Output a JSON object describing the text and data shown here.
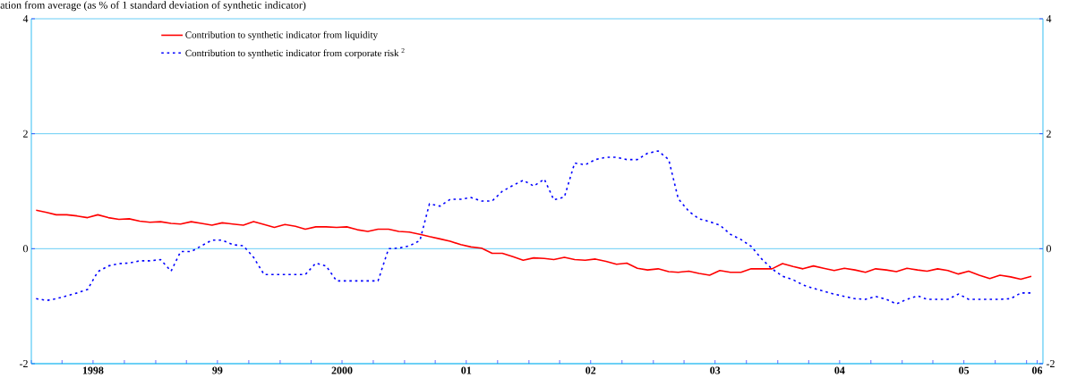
{
  "chart_data": {
    "type": "line",
    "title": "ation from average (as % of 1 standard deviation of synthetic indicator)",
    "x": [
      "1998-01-15",
      "1998-02-15",
      "1998-03-15",
      "1998-04-15",
      "1998-05-15",
      "1998-06-15",
      "1998-07-15",
      "1998-08-15",
      "1998-09-15",
      "1998-10-15",
      "1998-11-15",
      "1998-12-15",
      "1999-01-15",
      "1999-02-15",
      "1999-03-15",
      "1999-04-15",
      "1999-05-15",
      "1999-06-15",
      "1999-07-15",
      "1999-08-15",
      "1999-09-15",
      "1999-10-15",
      "1999-11-15",
      "1999-12-15",
      "2000-01-15",
      "2000-02-15",
      "2000-03-15",
      "2000-04-15",
      "2000-05-15",
      "2000-06-15",
      "2000-07-15",
      "2000-08-15",
      "2000-09-15",
      "2000-10-15",
      "2000-11-15",
      "2000-12-15",
      "2001-01-15",
      "2001-02-15",
      "2001-03-15",
      "2001-04-15",
      "2001-05-15",
      "2001-06-15",
      "2001-07-15",
      "2001-08-15",
      "2001-09-15",
      "2001-10-15",
      "2001-11-15",
      "2001-12-15",
      "2002-01-15",
      "2002-02-15",
      "2002-03-15",
      "2002-04-15",
      "2002-05-15",
      "2002-06-15",
      "2002-07-15",
      "2002-08-15",
      "2002-09-15",
      "2002-10-15",
      "2002-11-15",
      "2002-12-15",
      "2003-01-15",
      "2003-02-15",
      "2003-03-15",
      "2003-04-15",
      "2003-05-15",
      "2003-06-15",
      "2003-07-15",
      "2003-08-15",
      "2003-09-15",
      "2003-10-15",
      "2003-11-15",
      "2003-12-15",
      "2004-01-15",
      "2004-02-15",
      "2004-03-15",
      "2004-04-15",
      "2004-05-15",
      "2004-06-15",
      "2004-07-15",
      "2004-08-15",
      "2004-09-15",
      "2004-10-15",
      "2004-11-15",
      "2004-12-15",
      "2005-01-15",
      "2005-02-15",
      "2005-03-15",
      "2005-04-15",
      "2005-05-15",
      "2005-06-15",
      "2005-07-15",
      "2005-08-15",
      "2005-09-15",
      "2005-10-15",
      "2005-11-15",
      "2005-12-15",
      "2006-01-15"
    ],
    "series": [
      {
        "name": "Contribution to synthetic indicator from liquidity",
        "color": "#ff0000",
        "line_style": "solid",
        "values": [
          0.67,
          0.63,
          0.59,
          0.59,
          0.57,
          0.54,
          0.59,
          0.54,
          0.51,
          0.52,
          0.48,
          0.46,
          0.47,
          0.44,
          0.43,
          0.47,
          0.44,
          0.41,
          0.45,
          0.43,
          0.41,
          0.47,
          0.42,
          0.37,
          0.42,
          0.39,
          0.34,
          0.38,
          0.38,
          0.37,
          0.38,
          0.33,
          0.3,
          0.34,
          0.34,
          0.3,
          0.29,
          0.25,
          0.21,
          0.17,
          0.13,
          0.07,
          0.03,
          0.01,
          -0.08,
          -0.08,
          -0.14,
          -0.2,
          -0.16,
          -0.17,
          -0.19,
          -0.15,
          -0.19,
          -0.2,
          -0.18,
          -0.22,
          -0.27,
          -0.25,
          -0.34,
          -0.37,
          -0.35,
          -0.4,
          -0.41,
          -0.39,
          -0.43,
          -0.46,
          -0.38,
          -0.41,
          -0.41,
          -0.35,
          -0.35,
          -0.35,
          -0.26,
          -0.31,
          -0.35,
          -0.3,
          -0.34,
          -0.38,
          -0.34,
          -0.37,
          -0.41,
          -0.35,
          -0.37,
          -0.4,
          -0.34,
          -0.37,
          -0.39,
          -0.35,
          -0.38,
          -0.44,
          -0.39,
          -0.46,
          -0.52,
          -0.46,
          -0.49,
          -0.53,
          -0.48
        ]
      },
      {
        "name": "Contribution to synthetic indicator from corporate risk $^{2}$",
        "color": "#0000ff",
        "line_style": "dotted",
        "values": [
          -0.87,
          -0.9,
          -0.87,
          -0.82,
          -0.77,
          -0.71,
          -0.4,
          -0.3,
          -0.26,
          -0.25,
          -0.21,
          -0.21,
          -0.19,
          -0.39,
          -0.05,
          -0.05,
          0.05,
          0.15,
          0.15,
          0.07,
          0.05,
          -0.15,
          -0.45,
          -0.45,
          -0.45,
          -0.45,
          -0.45,
          -0.25,
          -0.3,
          -0.56,
          -0.56,
          -0.56,
          -0.56,
          -0.56,
          0.0,
          0.01,
          0.05,
          0.14,
          0.78,
          0.74,
          0.86,
          0.86,
          0.89,
          0.83,
          0.83,
          1.0,
          1.1,
          1.19,
          1.09,
          1.21,
          0.85,
          0.9,
          1.49,
          1.46,
          1.55,
          1.59,
          1.59,
          1.55,
          1.55,
          1.66,
          1.7,
          1.55,
          0.87,
          0.65,
          0.52,
          0.47,
          0.41,
          0.25,
          0.16,
          0.04,
          -0.18,
          -0.35,
          -0.48,
          -0.54,
          -0.63,
          -0.69,
          -0.74,
          -0.79,
          -0.83,
          -0.87,
          -0.88,
          -0.83,
          -0.88,
          -0.96,
          -0.88,
          -0.82,
          -0.88,
          -0.88,
          -0.88,
          -0.79,
          -0.88,
          -0.88,
          -0.88,
          -0.88,
          -0.87,
          -0.77,
          -0.77
        ]
      }
    ],
    "xlim": [
      "1998-01-01",
      "2006-02-18"
    ],
    "xticks": [
      {
        "value": "1998-01-01",
        "label": null
      },
      {
        "value": "1998-04-01",
        "label": null
      },
      {
        "value": "1998-07-01",
        "label": "1998"
      },
      {
        "value": "1998-10-01",
        "label": null
      },
      {
        "value": "1999-01-01",
        "label": null
      },
      {
        "value": "1999-04-01",
        "label": null
      },
      {
        "value": "1999-07-01",
        "label": "99"
      },
      {
        "value": "1999-10-01",
        "label": null
      },
      {
        "value": "2000-01-01",
        "label": null
      },
      {
        "value": "2000-04-01",
        "label": null
      },
      {
        "value": "2000-07-01",
        "label": "2000"
      },
      {
        "value": "2000-10-01",
        "label": null
      },
      {
        "value": "2001-01-01",
        "label": null
      },
      {
        "value": "2001-04-01",
        "label": null
      },
      {
        "value": "2001-07-01",
        "label": "01"
      },
      {
        "value": "2001-10-01",
        "label": null
      },
      {
        "value": "2002-01-01",
        "label": null
      },
      {
        "value": "2002-04-01",
        "label": null
      },
      {
        "value": "2002-07-01",
        "label": "02"
      },
      {
        "value": "2002-10-01",
        "label": null
      },
      {
        "value": "2003-01-01",
        "label": null
      },
      {
        "value": "2003-04-01",
        "label": null
      },
      {
        "value": "2003-07-01",
        "label": "03"
      },
      {
        "value": "2003-10-01",
        "label": null
      },
      {
        "value": "2004-01-01",
        "label": null
      },
      {
        "value": "2004-04-01",
        "label": null
      },
      {
        "value": "2004-07-01",
        "label": "04"
      },
      {
        "value": "2004-10-01",
        "label": null
      },
      {
        "value": "2005-01-01",
        "label": null
      },
      {
        "value": "2005-04-01",
        "label": null
      },
      {
        "value": "2005-07-01",
        "label": "05"
      },
      {
        "value": "2005-10-01",
        "label": null
      },
      {
        "value": "2006-01-01",
        "label": null
      },
      {
        "value": "2006-02-01",
        "label": "06"
      }
    ],
    "ylim": [
      -2,
      4
    ],
    "yticks": [
      -2,
      0,
      2,
      4
    ],
    "y2lim": [
      -2,
      4
    ],
    "y2ticks": [
      -2,
      0,
      2,
      4
    ],
    "grid": "y",
    "legend": "top"
  }
}
